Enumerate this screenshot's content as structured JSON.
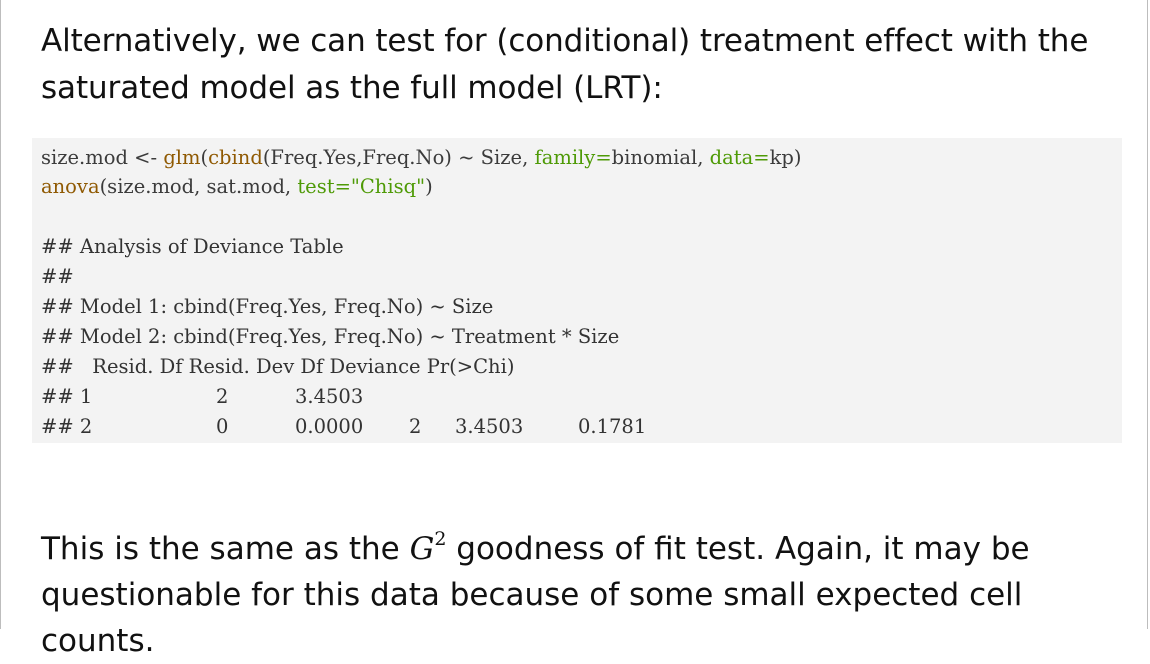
{
  "intro_text": "Alternatively, we can test for (conditional) treatment effect with the saturated model as the full model (LRT):",
  "code": {
    "line1": {
      "var": "size.mod",
      "assign": " <- ",
      "fun": "glm",
      "open": "(",
      "inner_fun": "cbind",
      "inner_args": "(Freq.Yes,Freq.No)",
      "tilde": " ~ ",
      "rhs": "Size, ",
      "arg1_name": "family",
      "arg1_eq": "=",
      "arg1_val": "binomial, ",
      "arg2_name": "data",
      "arg2_eq": "=",
      "arg2_val": "kp)"
    },
    "line2": {
      "fun": "anova",
      "args_plain": "(size.mod, sat.mod, ",
      "arg_name": "test",
      "arg_eq": "=",
      "arg_val": "\"Chisq\"",
      "close": ")"
    }
  },
  "output": {
    "line1": "## Analysis of Deviance Table",
    "line2": "##",
    "line3": "## Model 1: cbind(Freq.Yes, Freq.No) ~ Size",
    "line4": "## Model 2: cbind(Freq.Yes, Freq.No) ~ Treatment * Size",
    "header": "##   Resid. Df Resid. Dev Df Deviance Pr(>Chi)",
    "rows": [
      {
        "prefix": "## 1",
        "resid_df": "2",
        "resid_dev": "3.4503",
        "df": "",
        "deviance": "",
        "p": ""
      },
      {
        "prefix": "## 2",
        "resid_df": "0",
        "resid_dev": "0.0000",
        "df": "2",
        "deviance": "3.4503",
        "p": "0.1781"
      }
    ]
  },
  "outro": {
    "before": "This is the same as the ",
    "math_base": "G",
    "math_sup": "2",
    "after": " goodness of fit test. Again, it may be questionable for this data because of some small expected cell counts."
  }
}
